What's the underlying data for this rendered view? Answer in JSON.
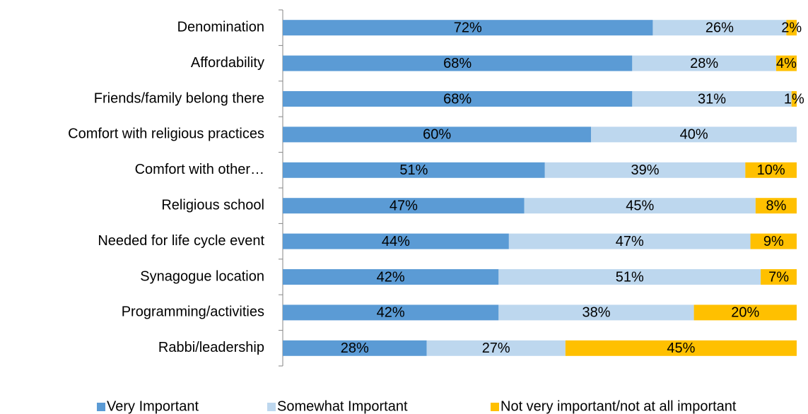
{
  "chart_data": {
    "type": "stacked-barh",
    "categories": [
      "Denomination",
      "Affordability",
      "Friends/family belong there",
      "Comfort with religious practices",
      "Comfort with other…",
      "Religious school",
      "Needed for life cycle event",
      "Synagogue location",
      "Programming/activities",
      "Rabbi/leadership"
    ],
    "series": [
      {
        "name": "Very Important",
        "color": "#5b9bd5",
        "values": [
          72,
          68,
          68,
          60,
          51,
          47,
          44,
          42,
          42,
          28
        ],
        "value_labels": [
          "72%",
          "68%",
          "68%",
          "60%",
          "51%",
          "47%",
          "44%",
          "42%",
          "42%",
          "28%"
        ]
      },
      {
        "name": "Somewhat Important",
        "color": "#bdd7ee",
        "values": [
          26,
          28,
          31,
          40,
          39,
          45,
          47,
          51,
          38,
          27
        ],
        "value_labels": [
          "26%",
          "28%",
          "31%",
          "40%",
          "39%",
          "45%",
          "47%",
          "51%",
          "38%",
          "27%"
        ]
      },
      {
        "name": "Not very important/not at all important",
        "color": "#ffc000",
        "values": [
          2,
          4,
          1,
          null,
          10,
          8,
          9,
          7,
          20,
          45
        ],
        "value_labels": [
          "2%",
          "4%",
          "1%",
          null,
          "10%",
          "8%",
          "9%",
          "7%",
          "20%",
          "45%"
        ]
      }
    ],
    "xlim": [
      0,
      100
    ],
    "legend": "bottom"
  }
}
